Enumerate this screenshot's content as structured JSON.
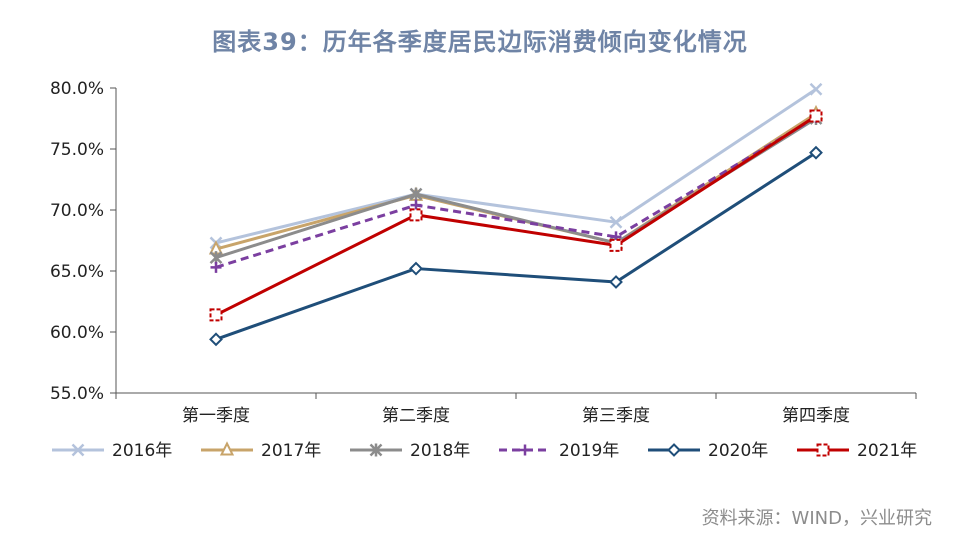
{
  "title": "图表39：历年各季度居民边际消费倾向变化情况",
  "source": "资料来源：WIND，兴业研究",
  "chart_data": {
    "type": "line",
    "title": "图表39：历年各季度居民边际消费倾向变化情况",
    "xlabel": "",
    "ylabel": "",
    "categories": [
      "第一季度",
      "第二季度",
      "第三季度",
      "第四季度"
    ],
    "ylim": [
      55.0,
      80.0
    ],
    "yticks": [
      55.0,
      60.0,
      65.0,
      70.0,
      75.0,
      80.0
    ],
    "ytick_labels": [
      "55.0%",
      "60.0%",
      "65.0%",
      "70.0%",
      "75.0%",
      "80.0%"
    ],
    "grid": false,
    "legend": "bottom",
    "series": [
      {
        "name": "2016年",
        "values": [
          67.3,
          71.3,
          69.0,
          79.9
        ],
        "color": "#b4c3dc",
        "marker": "x",
        "dashed": false
      },
      {
        "name": "2017年",
        "values": [
          66.8,
          71.2,
          67.3,
          77.9
        ],
        "color": "#c8a46a",
        "marker": "triangle",
        "dashed": false
      },
      {
        "name": "2018年",
        "values": [
          66.1,
          71.3,
          67.3,
          77.5
        ],
        "color": "#8c8c8c",
        "marker": "star",
        "dashed": false
      },
      {
        "name": "2019年",
        "values": [
          65.3,
          70.4,
          67.8,
          77.6
        ],
        "color": "#7b3fa0",
        "marker": "plus",
        "dashed": true
      },
      {
        "name": "2020年",
        "values": [
          59.4,
          65.2,
          64.1,
          74.7
        ],
        "color": "#1f4e79",
        "marker": "diamond",
        "dashed": false
      },
      {
        "name": "2021年",
        "values": [
          61.4,
          69.6,
          67.1,
          77.7
        ],
        "color": "#c00000",
        "marker": "square",
        "dashed": false
      }
    ]
  }
}
